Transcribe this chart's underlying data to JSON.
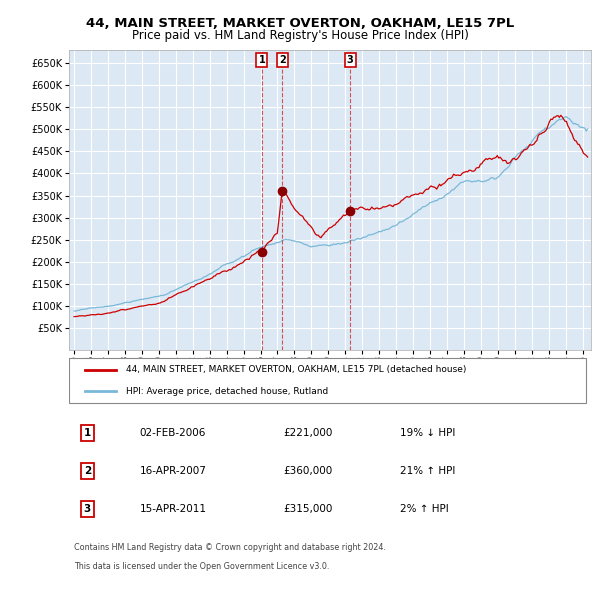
{
  "title_line1": "44, MAIN STREET, MARKET OVERTON, OAKHAM, LE15 7PL",
  "title_line2": "Price paid vs. HM Land Registry's House Price Index (HPI)",
  "legend_red": "44, MAIN STREET, MARKET OVERTON, OAKHAM, LE15 7PL (detached house)",
  "legend_blue": "HPI: Average price, detached house, Rutland",
  "transactions": [
    {
      "num": 1,
      "date": "02-FEB-2006",
      "price": 221000,
      "pct": "19%",
      "dir": "↓",
      "year_x": 2006.08
    },
    {
      "num": 2,
      "date": "16-APR-2007",
      "price": 360000,
      "pct": "21%",
      "dir": "↑",
      "year_x": 2007.29
    },
    {
      "num": 3,
      "date": "15-APR-2011",
      "price": 315000,
      "pct": "2%",
      "dir": "↑",
      "year_x": 2011.29
    }
  ],
  "footnote1": "Contains HM Land Registry data © Crown copyright and database right 2024.",
  "footnote2": "This data is licensed under the Open Government Licence v3.0.",
  "ylim_min": 0,
  "ylim_max": 680000,
  "yticks": [
    50000,
    100000,
    150000,
    200000,
    250000,
    300000,
    350000,
    400000,
    450000,
    500000,
    550000,
    600000,
    650000
  ],
  "xlim_min": 1994.7,
  "xlim_max": 2025.5,
  "bg_color": "#dce9f5",
  "red_color": "#cc0000",
  "blue_color": "#7ab8d8",
  "grid_color": "#ffffff",
  "marker_color": "#8b0000",
  "title_fontsize": 9.5,
  "subtitle_fontsize": 8.5
}
